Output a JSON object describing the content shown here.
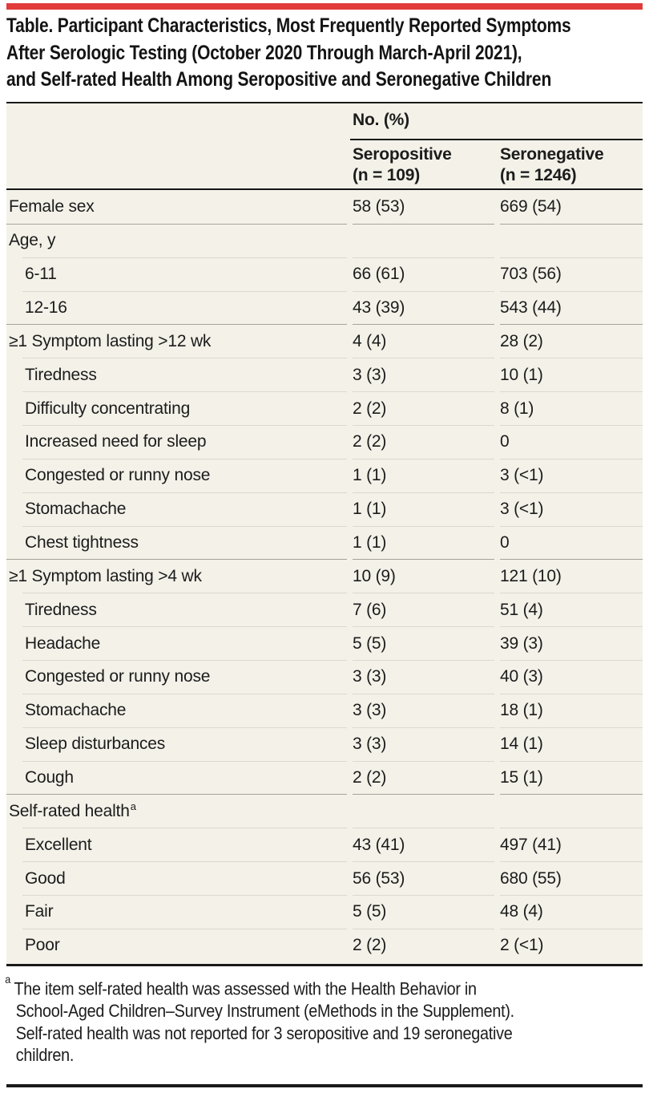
{
  "title_lines": [
    "Table. Participant Characteristics, Most Frequently Reported Symptoms",
    "After Serologic Testing (October 2020 Through March-April 2021),",
    "and Self-rated Health Among Seropositive and Seronegative Children"
  ],
  "table": {
    "group_header": "No. (%)",
    "columns": [
      {
        "label": "Seropositive",
        "n": "(n = 109)"
      },
      {
        "label": "Seronegative",
        "n": "(n = 1246)"
      }
    ],
    "rows": [
      {
        "label": "Female sex",
        "indent": false,
        "sep": "none",
        "values": [
          "58 (53)",
          "669 (54)"
        ]
      },
      {
        "label": "Age, y",
        "indent": false,
        "sep": "section",
        "values": [
          "",
          ""
        ]
      },
      {
        "label": "6-11",
        "indent": true,
        "sep": "light",
        "values": [
          "66 (61)",
          "703 (56)"
        ]
      },
      {
        "label": "12-16",
        "indent": true,
        "sep": "light",
        "values": [
          "43 (39)",
          "543 (44)"
        ]
      },
      {
        "label": "≥1 Symptom lasting >12 wk",
        "indent": false,
        "sep": "section",
        "values": [
          "4 (4)",
          "28 (2)"
        ]
      },
      {
        "label": "Tiredness",
        "indent": true,
        "sep": "light",
        "values": [
          "3 (3)",
          "10 (1)"
        ]
      },
      {
        "label": "Difficulty concentrating",
        "indent": true,
        "sep": "light",
        "values": [
          "2 (2)",
          "8 (1)"
        ]
      },
      {
        "label": "Increased need for sleep",
        "indent": true,
        "sep": "light",
        "values": [
          "2 (2)",
          "0"
        ]
      },
      {
        "label": "Congested or runny nose",
        "indent": true,
        "sep": "light",
        "values": [
          "1 (1)",
          "3 (<1)"
        ]
      },
      {
        "label": "Stomachache",
        "indent": true,
        "sep": "light",
        "values": [
          "1 (1)",
          "3 (<1)"
        ]
      },
      {
        "label": "Chest tightness",
        "indent": true,
        "sep": "light",
        "values": [
          "1 (1)",
          "0"
        ]
      },
      {
        "label": "≥1 Symptom lasting >4 wk",
        "indent": false,
        "sep": "section",
        "values": [
          "10 (9)",
          "121 (10)"
        ]
      },
      {
        "label": "Tiredness",
        "indent": true,
        "sep": "light",
        "values": [
          "7 (6)",
          "51 (4)"
        ]
      },
      {
        "label": "Headache",
        "indent": true,
        "sep": "light",
        "values": [
          "5 (5)",
          "39 (3)"
        ]
      },
      {
        "label": "Congested or runny nose",
        "indent": true,
        "sep": "light",
        "values": [
          "3 (3)",
          "40 (3)"
        ]
      },
      {
        "label": "Stomachache",
        "indent": true,
        "sep": "light",
        "values": [
          "3 (3)",
          "18 (1)"
        ]
      },
      {
        "label": "Sleep disturbances",
        "indent": true,
        "sep": "light",
        "values": [
          "3 (3)",
          "14 (1)"
        ]
      },
      {
        "label": "Cough",
        "indent": true,
        "sep": "light",
        "values": [
          "2 (2)",
          "15 (1)"
        ]
      },
      {
        "label": "Self-rated health",
        "sup": "a",
        "indent": false,
        "sep": "section",
        "values": [
          "",
          ""
        ]
      },
      {
        "label": "Excellent",
        "indent": true,
        "sep": "light",
        "values": [
          "43 (41)",
          "497 (41)"
        ]
      },
      {
        "label": "Good",
        "indent": true,
        "sep": "light",
        "values": [
          "56 (53)",
          "680 (55)"
        ]
      },
      {
        "label": "Fair",
        "indent": true,
        "sep": "light",
        "values": [
          "5 (5)",
          "48 (4)"
        ]
      },
      {
        "label": "Poor",
        "indent": true,
        "sep": "light",
        "values": [
          "2 (2)",
          "2 (<1)"
        ]
      }
    ]
  },
  "footnote": {
    "marker": "a",
    "lines": [
      "The item self-rated health was assessed with the Health Behavior in",
      "School-Aged Children–Survey Instrument (eMethods in the Supplement).",
      "Self-rated health was not reported for 3 seropositive and 19 seronegative",
      "children."
    ]
  },
  "colors": {
    "accent_red": "#e13b3a",
    "table_background": "#f3f1e8",
    "rule_black": "#1a1a1a",
    "section_line": "#a6a399",
    "row_line": "#dcdacd",
    "text": "#1c1c1c"
  }
}
